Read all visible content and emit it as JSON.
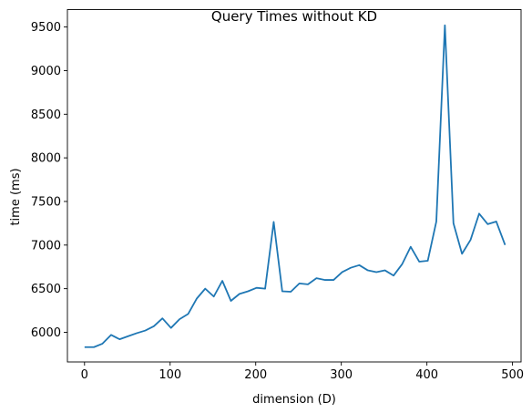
{
  "chart_data": {
    "type": "line",
    "title": "Query Times without KD",
    "xlabel": "dimension (D)",
    "ylabel": "time (ms)",
    "xlim": [
      -20,
      510
    ],
    "ylim": [
      5660,
      9700
    ],
    "xticks": [
      0,
      100,
      200,
      300,
      400,
      500
    ],
    "yticks": [
      6000,
      6500,
      7000,
      7500,
      8000,
      8500,
      9000,
      9500
    ],
    "grid": false,
    "line_color": "#1f77b4",
    "series": [
      {
        "x": [
          1,
          11,
          21,
          31,
          41,
          51,
          61,
          71,
          81,
          91,
          101,
          111,
          121,
          131,
          141,
          151,
          161,
          171,
          181,
          191,
          201,
          211,
          221,
          231,
          241,
          251,
          261,
          271,
          281,
          291,
          301,
          311,
          321,
          331,
          341,
          351,
          361,
          371,
          381,
          391,
          401,
          411,
          421,
          431,
          441,
          451,
          461,
          471,
          481,
          491
        ],
        "values": [
          5830,
          5830,
          5870,
          5970,
          5920,
          5955,
          5990,
          6020,
          6070,
          6160,
          6050,
          6150,
          6210,
          6385,
          6500,
          6410,
          6590,
          6360,
          6440,
          6470,
          6510,
          6500,
          7265,
          6470,
          6465,
          6560,
          6550,
          6620,
          6600,
          6600,
          6690,
          6740,
          6770,
          6710,
          6690,
          6710,
          6650,
          6780,
          6980,
          6810,
          6820,
          7270,
          9520,
          7250,
          6900,
          7060,
          7360,
          7240,
          7270,
          7010
        ]
      }
    ]
  }
}
